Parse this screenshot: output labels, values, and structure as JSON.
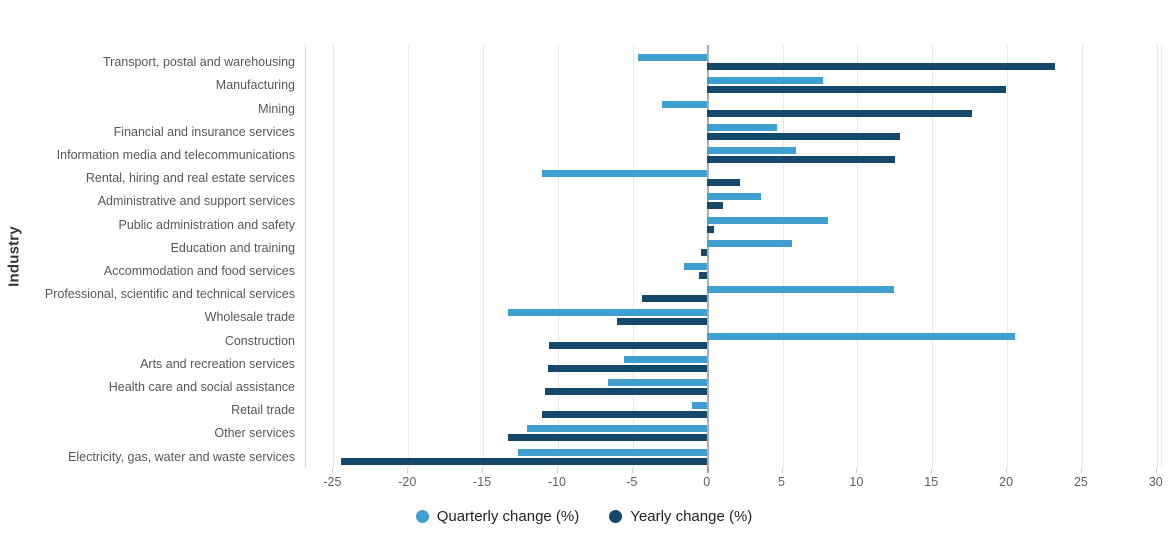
{
  "chart_data": {
    "type": "bar",
    "orientation": "horizontal",
    "ylabel": "Industry",
    "xlabel": "",
    "categories": [
      "Transport, postal and warehousing",
      "Manufacturing",
      "Mining",
      "Financial and insurance services",
      "Information media and telecommunications",
      "Rental, hiring and real estate services",
      "Administrative and support services",
      "Public administration and safety",
      "Education and training",
      "Accommodation and food services",
      "Professional, scientific and technical services",
      "Wholesale trade",
      "Construction",
      "Arts and recreation services",
      "Health care and social assistance",
      "Retail trade",
      "Other services",
      "Electricity, gas, water and waste services"
    ],
    "series": [
      {
        "name": "Quarterly change (%)",
        "color": "#3f9fd0",
        "values": [
          -4.6,
          7.8,
          -3.0,
          4.7,
          6.0,
          -11.0,
          3.6,
          8.1,
          5.7,
          -1.5,
          12.5,
          -13.3,
          20.6,
          -5.5,
          -6.6,
          -1.0,
          -12.0,
          -12.6
        ]
      },
      {
        "name": "Yearly change (%)",
        "color": "#15496c",
        "values": [
          23.3,
          20.0,
          17.7,
          12.9,
          12.6,
          2.2,
          1.1,
          0.5,
          -0.4,
          -0.5,
          -4.3,
          -6.0,
          -10.5,
          -10.6,
          -10.8,
          -11.0,
          -13.3,
          -24.4
        ]
      }
    ],
    "x_ticks": [
      -25,
      -20,
      -15,
      -10,
      -5,
      0,
      5,
      10,
      15,
      20,
      25,
      30
    ],
    "xlim": [
      -26.83,
      30.28
    ],
    "grid": true,
    "legend_position": "bottom"
  },
  "colors": {
    "quarterly": "#3f9fd0",
    "yearly": "#15496c",
    "gridline": "#e8e8e8",
    "zero_line": "#adadad",
    "background": "#ffffff"
  }
}
